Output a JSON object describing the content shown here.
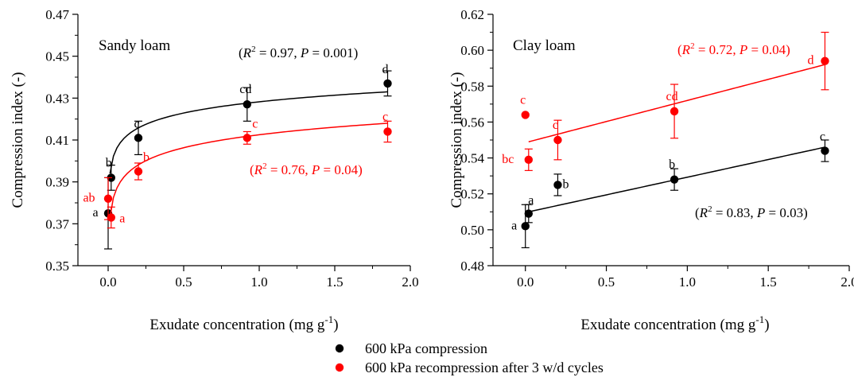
{
  "chart_data": [
    {
      "type": "scatter",
      "title": "Sandy loam",
      "xlabel": "Exudate concentration (mg g",
      "xlabel_sup": "-1",
      "xlabel_end": ")",
      "ylabel": "Compression index (-)",
      "xlim": [
        -0.2,
        2.0
      ],
      "ylim": [
        0.35,
        0.47
      ],
      "xticks": [
        "0.0",
        "0.5",
        "1.0",
        "1.5",
        "2.0"
      ],
      "yticks": [
        "0.35",
        "0.37",
        "0.39",
        "0.41",
        "0.43",
        "0.45",
        "0.47"
      ],
      "series": [
        {
          "color": "#000000",
          "x": [
            0,
            0.02,
            0.2,
            0.92,
            1.85
          ],
          "y": [
            0.375,
            0.392,
            0.411,
            0.427,
            0.437
          ],
          "err": [
            0.017,
            0.006,
            0.008,
            0.008,
            0.006
          ],
          "letters": [
            "a",
            "b",
            "c",
            "cd",
            "d"
          ],
          "fit": {
            "type": "log",
            "x0": 0.012,
            "x1": 1.85,
            "ya": 0.394,
            "yb": 0.433
          },
          "annotation": {
            "r2": "0.97",
            "p": "0.001"
          }
        },
        {
          "color": "#ff0000",
          "x": [
            0,
            0.02,
            0.2,
            0.92,
            1.85
          ],
          "y": [
            0.382,
            0.373,
            0.395,
            0.411,
            0.414
          ],
          "err": [
            0.01,
            0.005,
            0.004,
            0.003,
            0.005
          ],
          "letters": [
            "ab",
            "a",
            "b",
            "c",
            "c"
          ],
          "fit": {
            "type": "log",
            "x0": 0.012,
            "x1": 1.85,
            "ya": 0.373,
            "yb": 0.418
          },
          "annotation": {
            "r2": "0.76",
            "p": "0.04"
          }
        }
      ]
    },
    {
      "type": "scatter",
      "title": "Clay loam",
      "xlabel": "Exudate concentration (mg g",
      "xlabel_sup": "-1",
      "xlabel_end": ")",
      "ylabel": "Compression index (-)",
      "xlim": [
        -0.2,
        2.0
      ],
      "ylim": [
        0.48,
        0.62
      ],
      "xticks": [
        "0.0",
        "0.5",
        "1.0",
        "1.5",
        "2.0"
      ],
      "yticks": [
        "0.48",
        "0.50",
        "0.52",
        "0.54",
        "0.56",
        "0.58",
        "0.60",
        "0.62"
      ],
      "series": [
        {
          "color": "#000000",
          "x": [
            0,
            0.02,
            0.2,
            0.92,
            1.85
          ],
          "y": [
            0.502,
            0.509,
            0.525,
            0.528,
            0.544
          ],
          "err": [
            0.012,
            0.005,
            0.006,
            0.006,
            0.006
          ],
          "letters": [
            "a",
            "a",
            "b",
            "b",
            "c"
          ],
          "fit": {
            "type": "linear",
            "x0": 0.02,
            "x1": 1.85,
            "ya": 0.51,
            "yb": 0.546
          },
          "annotation": {
            "r2": "0.83",
            "p": "0.03"
          }
        },
        {
          "color": "#ff0000",
          "x": [
            0,
            0.02,
            0.2,
            0.92,
            1.85
          ],
          "y": [
            0.564,
            0.539,
            0.55,
            0.566,
            0.594
          ],
          "err": [
            0.0,
            0.006,
            0.011,
            0.015,
            0.016
          ],
          "letters": [
            "c",
            "bc",
            "c",
            "cd",
            "d"
          ],
          "fit": {
            "type": "linear",
            "x0": 0.02,
            "x1": 1.85,
            "ya": 0.549,
            "yb": 0.592
          },
          "annotation": {
            "r2": "0.72",
            "p": "0.04"
          }
        }
      ]
    }
  ],
  "legend": {
    "items": [
      {
        "label": "600 kPa compression",
        "color": "#000000"
      },
      {
        "label": "600 kPa recompression after 3 w/d cycles",
        "color": "#ff0000"
      }
    ]
  },
  "annotation_text": {
    "r2": "R",
    "sup": "2",
    "eq": " = ",
    "p": "P",
    "open": "(",
    "close": ")",
    "sep": ", "
  }
}
